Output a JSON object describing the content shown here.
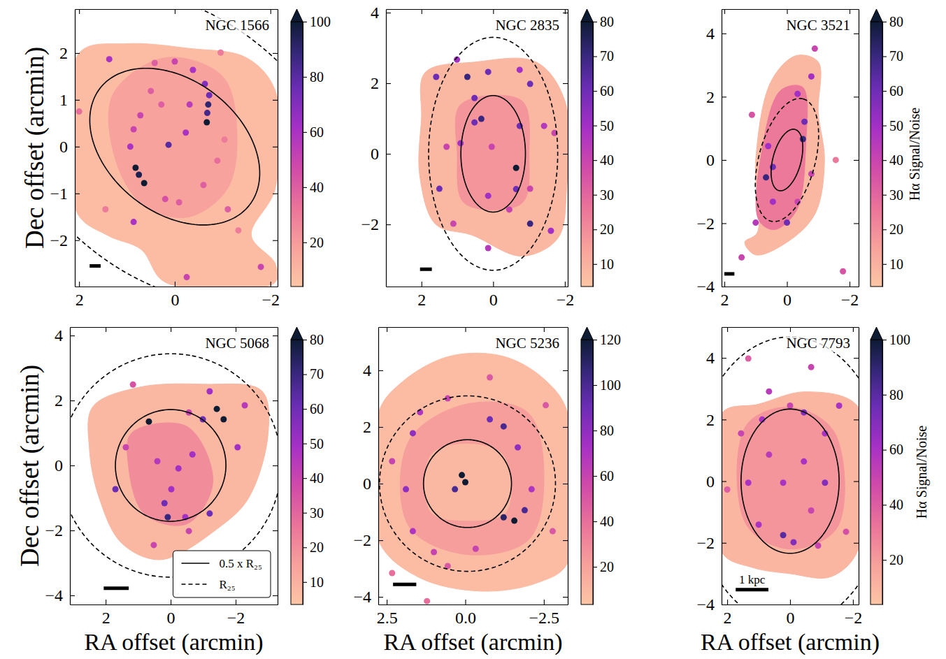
{
  "chart_data": [
    {
      "type": "map",
      "title": "NGC 1566",
      "ylabel": "Dec offset (arcmin)",
      "xlim": [
        2.09,
        -2.15
      ],
      "ylim": [
        -2.99,
        2.94
      ],
      "xticks": [
        2,
        0,
        {
          "value": -2,
          "label": "−2"
        }
      ],
      "yticks": [
        {
          "value": -2,
          "label": "−2"
        },
        {
          "value": -1,
          "label": "−1"
        },
        0,
        1,
        2
      ],
      "colorbar": {
        "range": [
          4,
          100
        ],
        "ticks": [
          20,
          40,
          60,
          80,
          100
        ]
      },
      "ellipses": [
        {
          "line_style": "solid",
          "x0": 0,
          "y0": 0,
          "a": 2.0,
          "b": 1.4,
          "pa": 50
        },
        {
          "line_style": "dashed",
          "x0": 0,
          "y0": 0,
          "a": 4.0,
          "b": 2.8,
          "pa": 50
        }
      ],
      "patches": [
        {
          "sn": 8,
          "x": [
            2.0,
            1.0,
            -0.3,
            -1.5,
            -2.1,
            -2.1,
            -1.6,
            -2.1,
            -2.1,
            0.2,
            0.7,
            1.4,
            2.05
          ],
          "y": [
            2.0,
            2.2,
            2.1,
            1.9,
            1.2,
            -0.9,
            -1.9,
            -2.5,
            -2.9,
            -2.9,
            -2.2,
            -1.9,
            -1.4
          ]
        },
        {
          "sn": 18,
          "x": [
            1.3,
            0.2,
            -1.0,
            -1.3,
            -1.1,
            -0.3,
            0.6,
            1.2
          ],
          "y": [
            1.1,
            1.9,
            1.5,
            0.3,
            -0.9,
            -1.5,
            -1.3,
            -0.4
          ]
        }
      ],
      "knots": {
        "x": [
          -0.7,
          -0.67,
          -0.63,
          -0.38,
          0,
          0.42,
          0.82,
          0.64,
          0.93,
          0.86,
          0.72,
          0.13,
          -0.23,
          -0.31,
          0.28,
          0.5,
          0.2,
          -0.09,
          -0.6,
          -0.89,
          -1.04,
          0.86,
          1.37,
          -1.8,
          -0.25,
          -1.11,
          -1.33,
          2.0,
          -0.96,
          1.45,
          -0.68,
          -0.72,
          0.75
        ],
        "y": [
          0.9,
          0.52,
          1.34,
          1.64,
          1.82,
          1.79,
          -0.45,
          -0.78,
          0,
          0.37,
          0.67,
          0.04,
          0.3,
          0.9,
          0.9,
          1.19,
          -1.12,
          -1.19,
          -0.82,
          -0.3,
          0.15,
          -1.61,
          1.87,
          -2.57,
          -2.79,
          -1.34,
          -1.79,
          0.75,
          2.01,
          -1.34,
          0.72,
          1.1,
          -0.6
        ],
        "sn": [
          90,
          100,
          70,
          60,
          50,
          40,
          100,
          100,
          60,
          50,
          50,
          80,
          60,
          55,
          40,
          40,
          45,
          40,
          40,
          35,
          30,
          60,
          60,
          50,
          50,
          40,
          30,
          35,
          30,
          30,
          85,
          75,
          95
        ]
      },
      "scale_bar": {
        "x": [
          1.78,
          1.55
        ],
        "y": -2.55
      }
    },
    {
      "type": "map",
      "title": "NGC 2835",
      "xlim": [
        2.99,
        -2.08
      ],
      "ylim": [
        -3.76,
        4.1
      ],
      "xticks": [
        2,
        0,
        {
          "value": -2,
          "label": "−2"
        }
      ],
      "yticks": [
        {
          "value": -2,
          "label": "−2"
        },
        0,
        2,
        4
      ],
      "colorbar": {
        "range": [
          3.5,
          80
        ],
        "ticks": [
          10,
          20,
          30,
          40,
          50,
          60,
          70,
          80
        ]
      },
      "ellipses": [
        {
          "line_style": "solid",
          "x0": 0,
          "y0": 0,
          "a": 1.65,
          "b": 0.9,
          "pa": 0
        },
        {
          "line_style": "dashed",
          "x0": 0,
          "y0": 0,
          "a": 3.3,
          "b": 1.8,
          "pa": 0
        }
      ],
      "patches": [
        {
          "sn": 8,
          "x": [
            1.9,
            0.5,
            -1.2,
            -2.0,
            -2.05,
            -1.8,
            -0.8,
            0.6,
            1.6,
            2.05,
            2.0
          ],
          "y": [
            2.3,
            2.6,
            2.6,
            1.5,
            -1.0,
            -2.4,
            -2.9,
            -2.3,
            -2.0,
            -0.6,
            1.0
          ]
        },
        {
          "sn": 18,
          "x": [
            0.9,
            -0.8,
            -1.0,
            -0.8,
            0.8,
            1.0
          ],
          "y": [
            1.4,
            1.5,
            0,
            -1.4,
            -1.4,
            0
          ]
        }
      ],
      "knots": {
        "x": [
          0.33,
          0.52,
          -0.64,
          -0.74,
          0.04,
          0.52,
          0.91,
          0.14,
          -0.45,
          0.72,
          0.14,
          -0.74,
          -1.03,
          1.01,
          1.59,
          1.5,
          1.3,
          -1.03,
          -1.61,
          -1.03,
          -1.42,
          1.11,
          0.14,
          -0.64,
          -1.71
        ],
        "y": [
          0.99,
          0.89,
          -0.4,
          0.79,
          0.2,
          1.58,
          0.3,
          -1.19,
          -1.58,
          2.18,
          2.32,
          2.38,
          1.98,
          2.67,
          2.18,
          -0.99,
          0.2,
          -1.98,
          -2.18,
          -0.99,
          0.79,
          -1.98,
          -2.67,
          -1.0,
          0.59
        ],
        "sn": [
          70,
          60,
          80,
          60,
          40,
          60,
          50,
          50,
          40,
          70,
          60,
          50,
          60,
          50,
          60,
          60,
          40,
          70,
          50,
          40,
          45,
          40,
          45,
          60,
          40
        ]
      },
      "scale_bar": {
        "x": [
          2.04,
          1.71
        ],
        "y": -3.27
      }
    },
    {
      "type": "map",
      "title": "NGC 3521",
      "xlim": [
        2.09,
        -2.29
      ],
      "ylim": [
        -4,
        4.77
      ],
      "xticks": [
        2,
        0,
        {
          "value": -2,
          "label": "−2"
        }
      ],
      "yticks": [
        {
          "value": -4,
          "label": "−4"
        },
        {
          "value": -2,
          "label": "−2"
        },
        0,
        2,
        4
      ],
      "colorbar": {
        "range": [
          3.5,
          80
        ],
        "ticks": [
          10,
          20,
          30,
          40,
          50,
          60,
          70,
          80
        ],
        "label": "Hα Signal/Noise"
      },
      "ellipses": [
        {
          "line_style": "solid",
          "x0": 0,
          "y0": 0,
          "a": 1.0,
          "b": 0.45,
          "pa": -15
        },
        {
          "line_style": "dashed",
          "x0": 0,
          "y0": 0,
          "a": 2.0,
          "b": 0.9,
          "pa": -15
        }
      ],
      "patches": [
        {
          "sn": 8,
          "x": [
            1.35,
            0.95,
            1.0,
            0.5,
            -0.3,
            -1.0,
            -1.0,
            -1.2,
            -0.9,
            0.0,
            1.0
          ],
          "y": [
            -2.6,
            -2.3,
            0,
            2.5,
            3.3,
            3.1,
            1.5,
            0,
            -1.7,
            -2.6,
            -3.0
          ]
        },
        {
          "sn": 25,
          "x": [
            0.9,
            0.8,
            0.2,
            -0.5,
            -0.6,
            -0.3,
            0.4
          ],
          "y": [
            -1.9,
            0.3,
            2.2,
            2.3,
            0.5,
            -1.6,
            -2.2
          ]
        }
      ],
      "knots": {
        "x": [
          0.67,
          0.45,
          0.6,
          -0.51,
          -0.56,
          -0.34,
          -0.78,
          0,
          0.45,
          -0.34,
          1.0,
          1.12,
          -0.78,
          1.45,
          -1.79,
          -0.89,
          -1.56
        ],
        "y": [
          -0.55,
          -0.22,
          0.44,
          0.66,
          1.21,
          2.09,
          2.64,
          -1.98,
          -1.32,
          -1.32,
          -1.98,
          1.43,
          -0.44,
          -3.08,
          -3.52,
          3.52,
          0
        ],
        "sn": [
          70,
          60,
          50,
          70,
          60,
          50,
          50,
          60,
          50,
          40,
          45,
          35,
          40,
          40,
          35,
          40,
          25
        ]
      },
      "scale_bar": {
        "x": [
          2.0,
          1.68
        ],
        "y": -3.6
      }
    },
    {
      "type": "map",
      "title": "NGC 5068",
      "xlabel": "RA offset (arcmin)",
      "ylabel": "Dec offset (arcmin)",
      "xlim": [
        3.1,
        -3.29
      ],
      "ylim": [
        -4.28,
        4.26
      ],
      "xticks": [
        2,
        0,
        {
          "value": -2,
          "label": "−2"
        }
      ],
      "yticks": [
        {
          "value": -4,
          "label": "−4"
        },
        {
          "value": -2,
          "label": "−2"
        },
        0,
        2,
        4
      ],
      "colorbar": {
        "range": [
          3.5,
          80
        ],
        "ticks": [
          10,
          20,
          30,
          40,
          50,
          60,
          70,
          80
        ]
      },
      "legend": "lower right",
      "ellipses": [
        {
          "name": "0.5 x R₂₅",
          "line_style": "solid",
          "x0": 0,
          "y0": 0,
          "a": 1.72,
          "b": 1.7,
          "pa": -10
        },
        {
          "name": "R₂₅",
          "line_style": "dashed",
          "x0": 0,
          "y0": 0,
          "a": 3.44,
          "b": 3.4,
          "pa": -10
        }
      ],
      "patches": [
        {
          "sn": 8,
          "x": [
            2.4,
            1.0,
            -1.0,
            -2.8,
            -3.0,
            -2.4,
            -1.5,
            0.3,
            1.5,
            2.2,
            2.5
          ],
          "y": [
            1.8,
            2.4,
            2.5,
            2.3,
            1.0,
            -1.0,
            -1.9,
            -2.9,
            -2.4,
            -1.0,
            0.5
          ]
        },
        {
          "sn": 20,
          "x": [
            1.2,
            -0.5,
            -1.3,
            -0.5,
            0.8,
            1.3
          ],
          "y": [
            1.0,
            1.2,
            -0.5,
            -1.8,
            -1.5,
            0
          ]
        }
      ],
      "knots": {
        "x": [
          0.67,
          -0.02,
          0.19,
          0.09,
          -0.45,
          -1.2,
          -0.99,
          -1.42,
          -1.63,
          -1.2,
          1.7,
          1.38,
          -0.67,
          -0.24,
          0.41,
          -2.06,
          -2.28,
          0.52,
          1.16,
          -0.56,
          -0.56
        ],
        "y": [
          1.35,
          -0.73,
          -1.16,
          -1.59,
          -1.59,
          -1.48,
          1.42,
          1.74,
          1.42,
          2.28,
          -0.73,
          0.56,
          0.34,
          -0.09,
          0.13,
          0.56,
          1.85,
          -2.45,
          2.49,
          1.63,
          -2.02
        ],
        "sn": [
          80,
          50,
          60,
          70,
          50,
          60,
          60,
          80,
          80,
          50,
          60,
          40,
          50,
          50,
          45,
          50,
          45,
          40,
          35,
          40,
          40
        ]
      },
      "scale_bar": {
        "x": [
          2.06,
          1.29
        ],
        "y": -3.78
      }
    },
    {
      "type": "map",
      "title": "NGC 5236",
      "xlabel": "RA offset (arcmin)",
      "xlim": [
        2.77,
        -3.26
      ],
      "ylim": [
        -4.27,
        5.53
      ],
      "xticks": [
        2.5,
        {
          "value": 0,
          "label": "0.0"
        },
        {
          "value": -2.5,
          "label": "−2.5"
        }
      ],
      "yticks": [
        {
          "value": -4,
          "label": "−4"
        },
        {
          "value": -2,
          "label": "−2"
        },
        0,
        2,
        4
      ],
      "colorbar": {
        "range": [
          3.4,
          120
        ],
        "ticks": [
          20,
          40,
          60,
          80,
          100,
          120
        ]
      },
      "ellipses": [
        {
          "line_style": "solid",
          "x0": -0.07,
          "y0": 0,
          "a": 1.55,
          "b": 1.4,
          "pa": 0
        },
        {
          "line_style": "dashed",
          "x0": -0.07,
          "y0": 0,
          "a": 3.1,
          "b": 2.8,
          "pa": 0
        }
      ],
      "patches": [
        {
          "sn": 8,
          "x": [
            2.77,
            2.0,
            0.5,
            -1.2,
            -2.5,
            -3.26,
            -3.26,
            -2.3,
            -0.5,
            1.5,
            2.77
          ],
          "y": [
            2.5,
            3.6,
            4.5,
            4.5,
            3.7,
            2.5,
            -2.8,
            -3.5,
            -3.8,
            -3.3,
            -2.0
          ]
        },
        {
          "sn": 22,
          "x": [
            1.8,
            0,
            -2.0,
            -2.5,
            -2.0,
            0,
            1.8
          ],
          "y": [
            1.5,
            2.8,
            2.5,
            0,
            -2.0,
            -2.5,
            -1.5
          ]
        },
        {
          "sn": 10,
          "x": [
            1.1,
            0,
            -1.2,
            -1.3,
            0,
            1.1
          ],
          "y": [
            1.0,
            1.4,
            1.0,
            -1.0,
            -1.3,
            -1.0
          ]
        }
      ],
      "knots": {
        "x": [
          0,
          0.11,
          0.33,
          -1.56,
          -1.22,
          -1.89,
          -1.22,
          -0.78,
          -1.67,
          -2.11,
          1.67,
          1.44,
          1.89,
          1.67,
          1.0,
          -0.33,
          -0.78,
          0.56,
          2.33,
          -2.56,
          -2.78,
          0.56,
          1.22,
          2.33
        ],
        "y": [
          0.05,
          0.3,
          -0.2,
          -1.31,
          -1.19,
          -0.94,
          2.02,
          2.27,
          1.28,
          -0.2,
          1.78,
          2.52,
          -0.2,
          -1.68,
          -2.42,
          -2.3,
          3.75,
          3.01,
          0.79,
          2.77,
          -1.68,
          -2.91,
          -4.15,
          -3.16
        ],
        "sn": [
          120,
          120,
          100,
          120,
          110,
          100,
          100,
          90,
          80,
          70,
          80,
          70,
          80,
          70,
          60,
          60,
          50,
          60,
          60,
          50,
          50,
          50,
          40,
          40
        ]
      },
      "scale_bar": {
        "x": [
          2.3,
          1.56
        ],
        "y": -3.56
      }
    },
    {
      "type": "map",
      "title": "NGC 7793",
      "xlabel": "RA offset (arcmin)",
      "xlim": [
        2.18,
        -2.18
      ],
      "ylim": [
        -4,
        5.0
      ],
      "xticks": [
        2,
        0,
        {
          "value": -2,
          "label": "−2"
        }
      ],
      "yticks": [
        {
          "value": -4,
          "label": "−4"
        },
        {
          "value": -2,
          "label": "−2"
        },
        0,
        2,
        4
      ],
      "colorbar": {
        "range": [
          3.8,
          100
        ],
        "ticks": [
          20,
          40,
          60,
          80,
          100
        ],
        "label": "Hα Signal/Noise"
      },
      "ellipses": [
        {
          "line_style": "solid",
          "x0": 0,
          "y0": 0,
          "a": 2.34,
          "b": 1.56,
          "pa": 0
        },
        {
          "line_style": "dashed",
          "x0": 0,
          "y0": 0,
          "a": 4.68,
          "b": 3.12,
          "pa": 0
        }
      ],
      "patches": [
        {
          "sn": 10,
          "x": [
            2.18,
            1.0,
            -0.5,
            -2.18,
            -2.18,
            -1.3,
            0.0,
            1.2,
            2.18
          ],
          "y": [
            2.2,
            2.5,
            2.9,
            2.4,
            -2.2,
            -3.1,
            -3.0,
            -2.8,
            -2.3
          ]
        },
        {
          "sn": 22,
          "x": [
            1.4,
            0,
            -1.4,
            -1.5,
            0,
            1.4
          ],
          "y": [
            1.8,
            2.4,
            1.6,
            -1.5,
            -2.2,
            -1.4
          ]
        }
      ],
      "knots": {
        "x": [
          -0.67,
          1.33,
          0.22,
          -0.44,
          0.89,
          -0.44,
          -1.11,
          -1.11,
          1.0,
          0.22,
          -0.11,
          1.33,
          0.67,
          -0.67,
          -1.56,
          1.56,
          -0.89,
          2.0,
          -1.78,
          0.67,
          0
        ],
        "y": [
          3.7,
          3.98,
          -0.05,
          0.64,
          2.0,
          2.23,
          1.55,
          -0.05,
          -1.41,
          -1.75,
          -1.98,
          -0.05,
          0.86,
          -0.95,
          2.45,
          1.55,
          -2.09,
          -0.27,
          -1.64,
          2.91,
          2.45
        ],
        "sn": [
          50,
          40,
          60,
          60,
          60,
          70,
          60,
          70,
          60,
          80,
          70,
          60,
          55,
          50,
          60,
          50,
          50,
          40,
          45,
          55,
          50
        ]
      },
      "scale_bar": {
        "x": [
          1.73,
          0.69
        ],
        "y": -3.52,
        "label": "1 kpc"
      }
    }
  ]
}
